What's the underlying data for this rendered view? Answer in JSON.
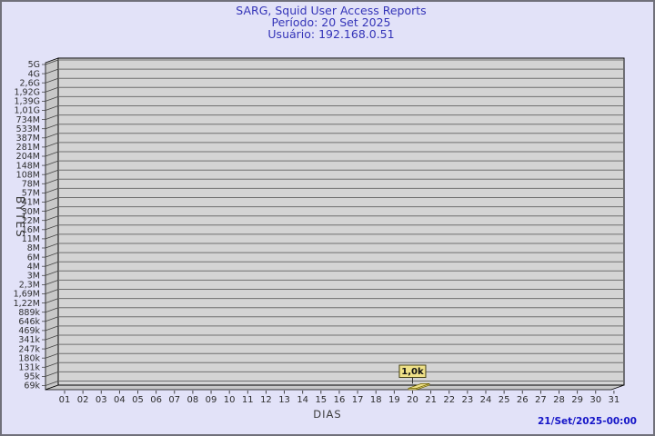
{
  "header": {
    "title": "SARG, Squid User Access Reports",
    "period_line": "Período: 20 Set 2025",
    "user_line": "Usuário: 192.168.0.51"
  },
  "footer": {
    "timestamp": "21/Set/2025-00:00"
  },
  "chart_data": {
    "type": "bar",
    "style": "3d-bar-log-scale",
    "title": "SARG, Squid User Access Reports",
    "subtitle_period": "Período: 20 Set 2025",
    "subtitle_user": "Usuário: 192.168.0.51",
    "xlabel": "DIAS",
    "ylabel": "BYTES",
    "x_ticks": [
      "01",
      "02",
      "03",
      "04",
      "05",
      "06",
      "07",
      "08",
      "09",
      "10",
      "11",
      "12",
      "13",
      "14",
      "15",
      "16",
      "17",
      "18",
      "19",
      "20",
      "21",
      "22",
      "23",
      "24",
      "25",
      "26",
      "27",
      "28",
      "29",
      "30",
      "31"
    ],
    "y_ticks": [
      "5G",
      "4G",
      "2,6G",
      "1,92G",
      "1,39G",
      "1,01G",
      "734M",
      "533M",
      "387M",
      "281M",
      "204M",
      "148M",
      "108M",
      "78M",
      "57M",
      "41M",
      "30M",
      "22M",
      "16M",
      "11M",
      "8M",
      "6M",
      "4M",
      "3M",
      "2,3M",
      "1,69M",
      "1,22M",
      "889k",
      "646k",
      "469k",
      "341k",
      "247k",
      "180k",
      "131k",
      "95k",
      "69k"
    ],
    "ylim_labels": [
      "69k",
      "5G"
    ],
    "grid": true,
    "bars": [
      {
        "day": "20",
        "value_label": "1,0k",
        "value_bytes_approx": 1000
      }
    ],
    "colors": {
      "background": "#e2e2f8",
      "page_border": "#70707a",
      "title_text": "#3434b8",
      "timestamp_text": "#1616c8",
      "plot_back_wall": "#d4d4d4",
      "plot_side_wall": "#c8c8c8",
      "gridline": "#6f6f6f",
      "frame_line": "#000000",
      "axis_text": "#2e2e2e",
      "bar_fill": "#efe188",
      "bar_border": "#6b5e00",
      "annotation_bg": "#efe188",
      "annotation_border": "#454116",
      "annotation_text": "#111111"
    }
  }
}
